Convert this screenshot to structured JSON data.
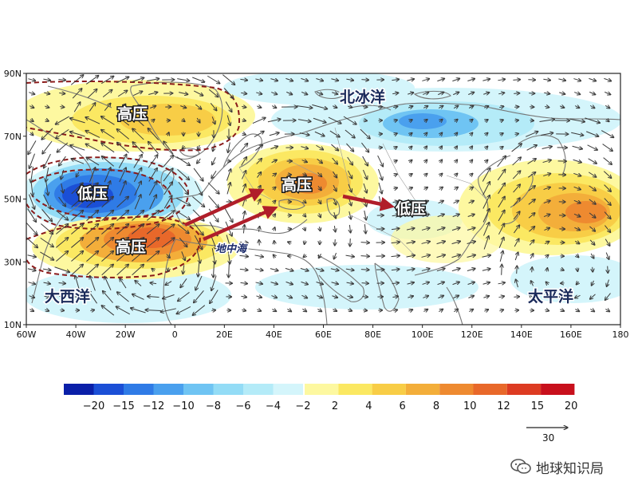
{
  "map": {
    "lat_labels": [
      "90N",
      "70N",
      "50N",
      "30N",
      "10N"
    ],
    "lon_labels": [
      "60W",
      "40W",
      "20W",
      "0",
      "20E",
      "40E",
      "60E",
      "80E",
      "100E",
      "120E",
      "140E",
      "160E",
      "180"
    ],
    "labels": {
      "high_pressure_1": "高压",
      "low_pressure_1": "低压",
      "high_pressure_2": "高压",
      "high_pressure_3": "高压",
      "low_pressure_2": "低压",
      "arctic_ocean": "北冰洋",
      "atlantic_ocean": "大西洋",
      "pacific_ocean": "太平洋",
      "mediterranean_sea": "地中海"
    },
    "colors": {
      "arrow_red": "#b01e2a",
      "contour_dashed": "#8b1a1a",
      "coastline": "#777777"
    }
  },
  "colorbar": {
    "negative_ticks": [
      "−20",
      "−15",
      "−12",
      "−10",
      "−8",
      "−6",
      "−4",
      "−2"
    ],
    "positive_ticks": [
      "2",
      "4",
      "6",
      "8",
      "10",
      "12",
      "15",
      "20"
    ],
    "negative_colors": [
      "#0a1fa8",
      "#1b4fd6",
      "#2f7be6",
      "#4aa0ee",
      "#6fc4f3",
      "#93dcf6",
      "#b4ebf8",
      "#d4f5fb"
    ],
    "positive_colors": [
      "#fdf8a0",
      "#fbe862",
      "#f8cd46",
      "#f3ae3a",
      "#ee8a30",
      "#e8682a",
      "#dd3b22",
      "#c8101c"
    ]
  },
  "vector_legend": {
    "label": "30"
  },
  "watermark": {
    "text": "地球知识局",
    "icon": "wechat-icon"
  }
}
